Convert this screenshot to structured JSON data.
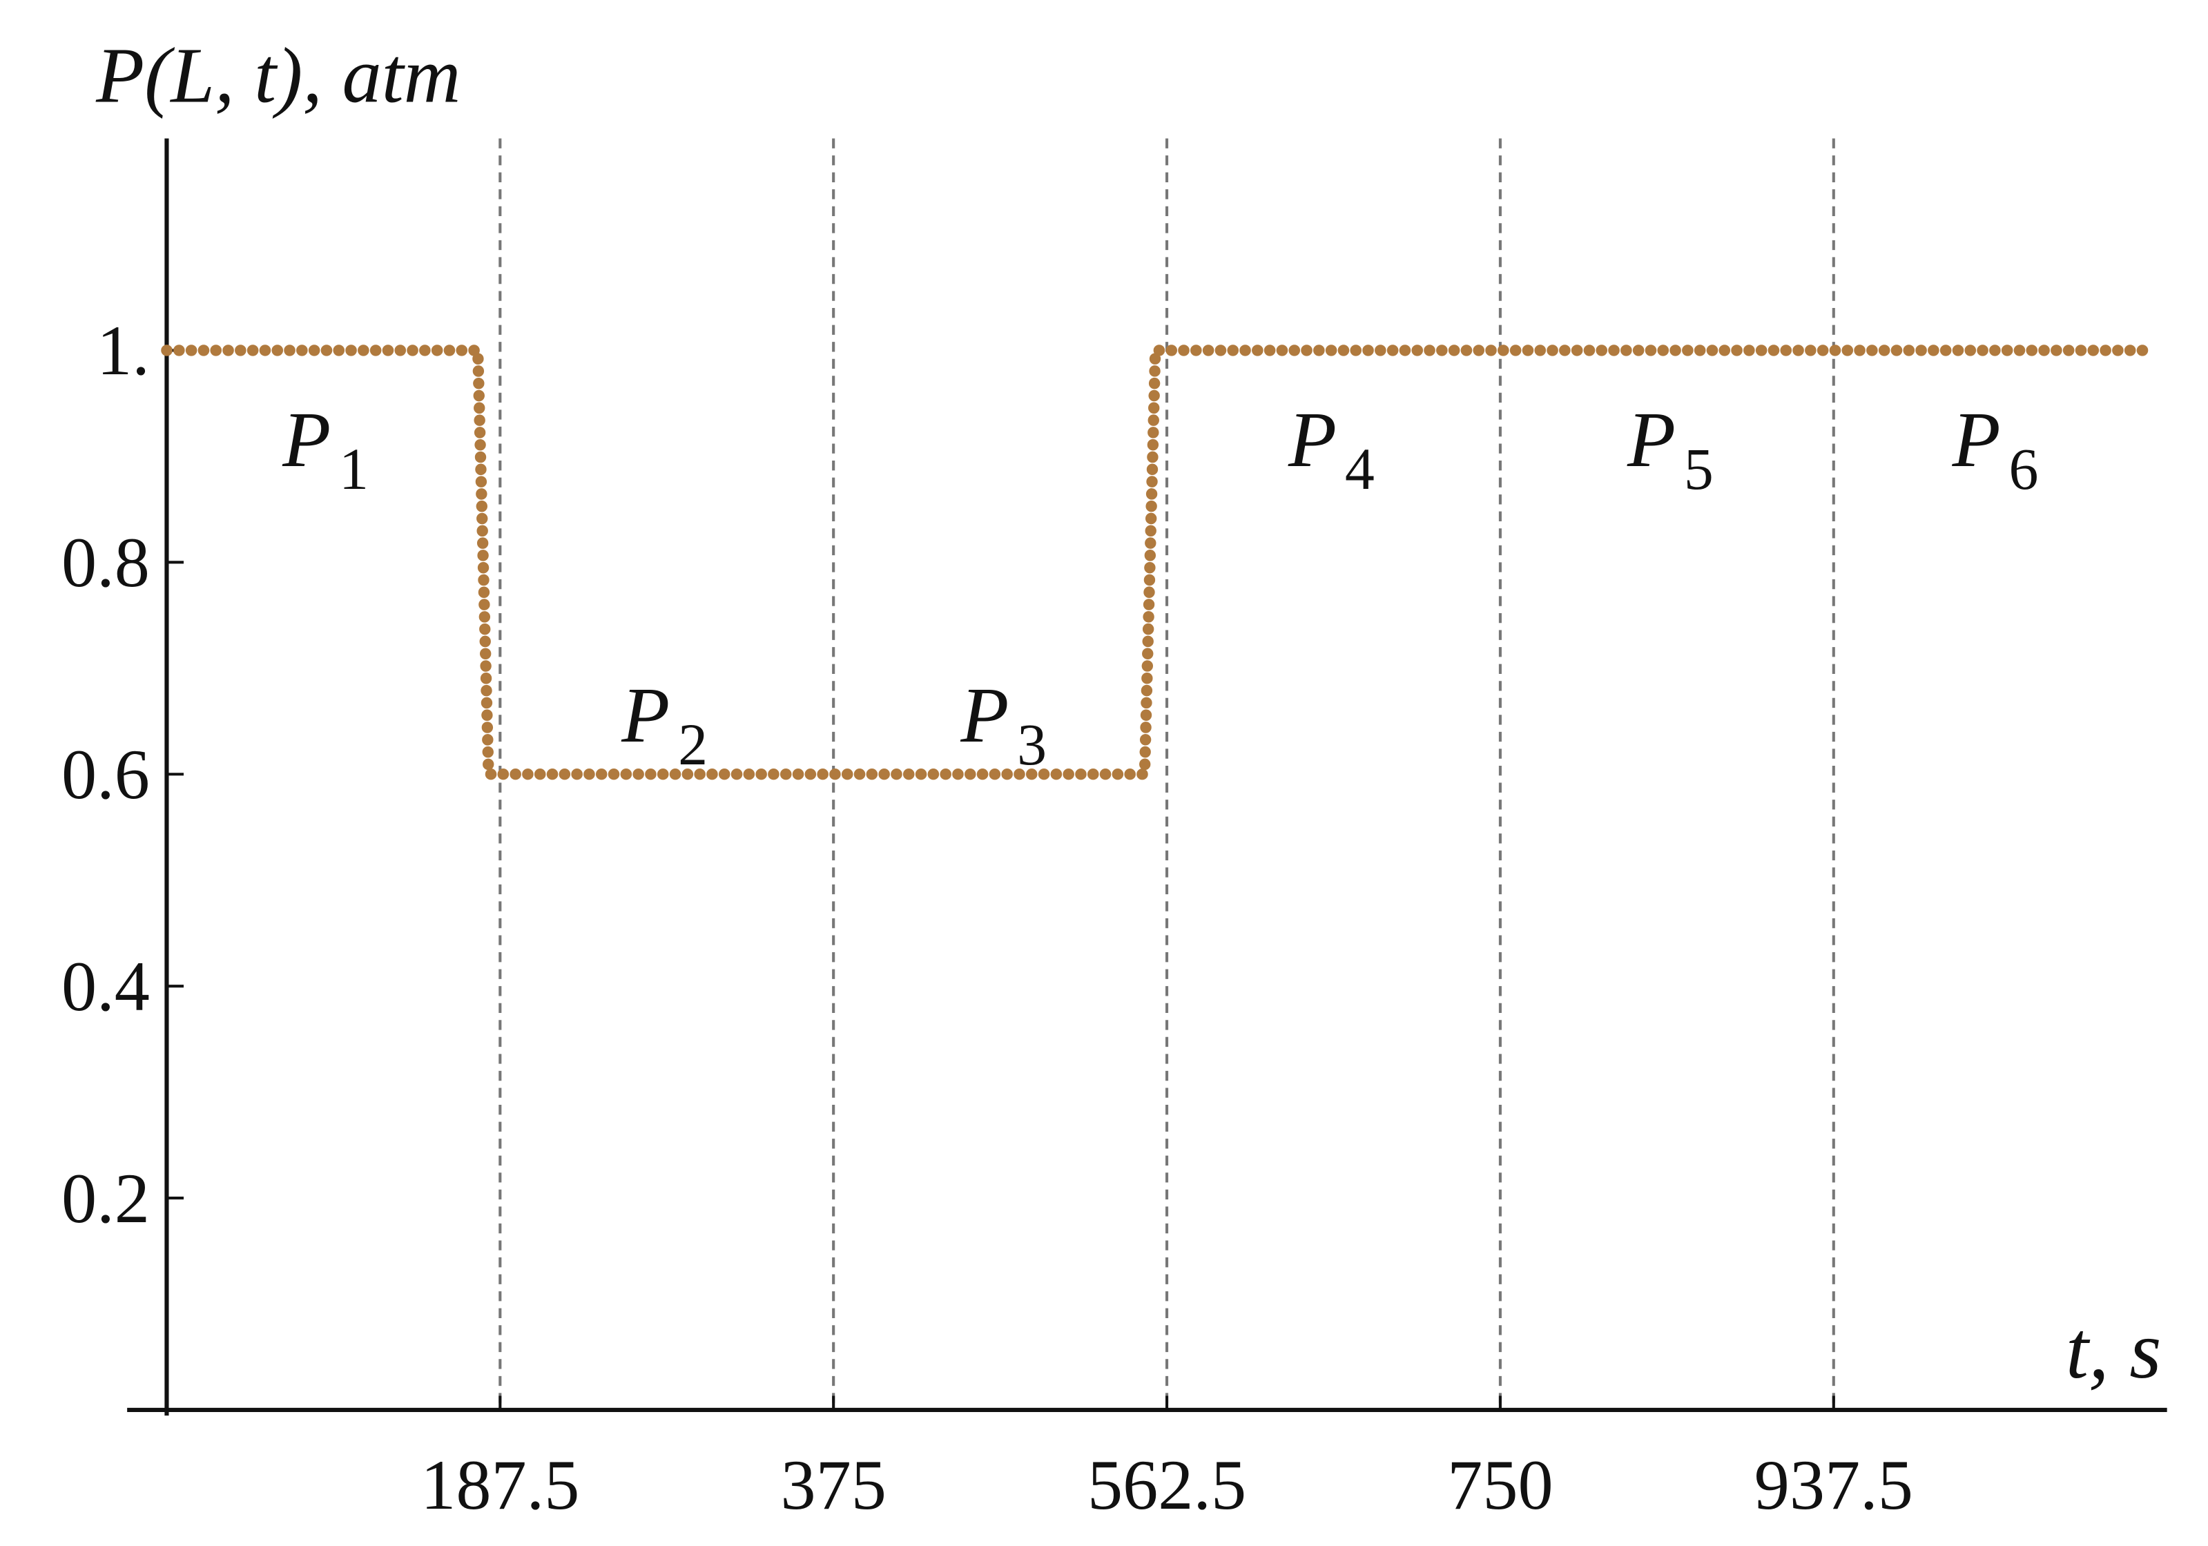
{
  "chart_data": {
    "type": "line",
    "ylabel": "P(L, t), atm",
    "xlabel": "t, s",
    "x": [
      0,
      175,
      181,
      550,
      556,
      1112
    ],
    "series": [
      {
        "name": "P(L, t)",
        "color": "#b07a3e",
        "values": [
          1,
          1,
          0.6,
          0.6,
          1,
          1
        ]
      }
    ],
    "xlim": [
      0,
      1125
    ],
    "ylim": [
      0,
      1.2
    ],
    "xticks": [
      187.5,
      375,
      562.5,
      750,
      937.5
    ],
    "yticks": [
      0.2,
      0.4,
      0.6,
      0.8,
      {
        "value": 1,
        "label": "1."
      }
    ],
    "grid": "x",
    "annotations": [
      {
        "text": "P",
        "subscript": "1"
      },
      {
        "text": "P",
        "subscript": "2"
      },
      {
        "text": "P",
        "subscript": "3"
      },
      {
        "text": "P",
        "subscript": "4"
      },
      {
        "text": "P",
        "subscript": "5"
      },
      {
        "text": "P",
        "subscript": "6"
      }
    ]
  }
}
